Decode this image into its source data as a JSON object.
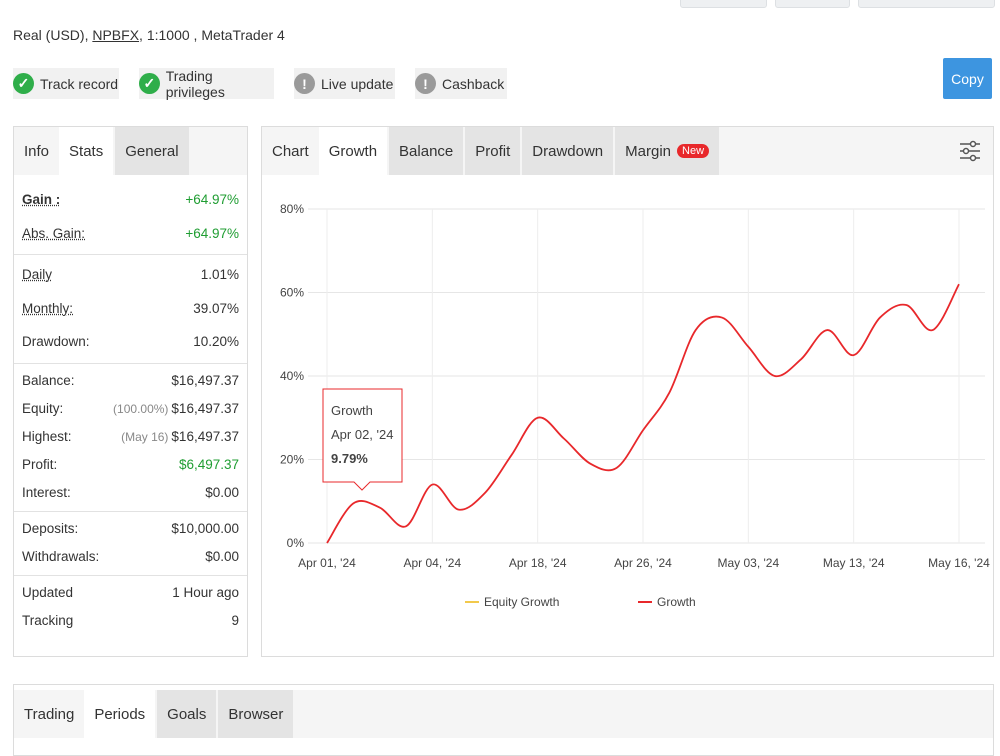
{
  "header": {
    "account": "Real (USD),",
    "broker": "NPBFX",
    "details": ", 1:1000 , MetaTrader 4",
    "badges": [
      {
        "label": "Track record",
        "status": "ok"
      },
      {
        "label": "Trading privileges",
        "status": "ok"
      },
      {
        "label": "Live update",
        "status": "warn"
      },
      {
        "label": "Cashback",
        "status": "warn"
      }
    ],
    "copy_button": "Copy"
  },
  "stats_panel": {
    "tabs": [
      "Info",
      "Stats",
      "General"
    ],
    "groups": [
      [
        {
          "label": "Gain :",
          "value": "+64.97%",
          "tone": "positive",
          "underline": true,
          "bold": true
        },
        {
          "label": "Abs. Gain:",
          "value": "+64.97%",
          "tone": "positive",
          "underline": true
        }
      ],
      [
        {
          "label": "Daily",
          "value": "1.01%",
          "underline": true
        },
        {
          "label": "Monthly:",
          "value": "39.07%",
          "underline": true
        },
        {
          "label": "Drawdown:",
          "value": "10.20%"
        }
      ],
      [
        {
          "label": "Balance:",
          "value": "$16,497.37"
        },
        {
          "label": "Equity:",
          "note": "(100.00%)",
          "value": "$16,497.37"
        },
        {
          "label": "Highest:",
          "note": "(May 16)",
          "value": "$16,497.37"
        },
        {
          "label": "Profit:",
          "value": "$6,497.37",
          "tone": "positive"
        },
        {
          "label": "Interest:",
          "value": "$0.00"
        }
      ],
      [
        {
          "label": "Deposits:",
          "value": "$10,000.00"
        },
        {
          "label": "Withdrawals:",
          "value": "$0.00"
        }
      ],
      [
        {
          "label": "Updated",
          "value": "1 Hour ago"
        },
        {
          "label": "Tracking",
          "value": "9"
        }
      ]
    ]
  },
  "chart_panel": {
    "tabs": [
      "Chart",
      "Growth",
      "Balance",
      "Profit",
      "Drawdown",
      "Margin"
    ],
    "new_badge": "New"
  },
  "chart_data": {
    "type": "line",
    "categories": [
      "Apr 01, '24",
      null,
      null,
      null,
      "Apr 04, '24",
      null,
      null,
      null,
      "Apr 18, '24",
      null,
      null,
      null,
      "Apr 26, '24",
      null,
      null,
      null,
      "May 03, '24",
      null,
      null,
      null,
      "May 13, '24",
      null,
      null,
      null,
      "May 16, '24"
    ],
    "series": [
      {
        "name": "Equity Growth",
        "color": "#f2c94c",
        "values": [
          null,
          null,
          null,
          null,
          null,
          null,
          null,
          null,
          null,
          null,
          null,
          null,
          null,
          null,
          null,
          null,
          null,
          null,
          null,
          null,
          null,
          null,
          null,
          null,
          null
        ]
      },
      {
        "name": "Growth",
        "color": "#e8282b",
        "values": [
          0,
          9.5,
          8.5,
          4,
          14,
          8,
          12,
          21,
          30,
          25,
          19,
          18,
          27,
          36,
          51,
          54,
          47,
          40,
          44,
          51,
          45,
          54,
          57,
          51,
          62
        ]
      }
    ],
    "ylim": [
      0,
      80
    ],
    "yticks": [
      {
        "value": 0,
        "label": "0%"
      },
      {
        "value": 20,
        "label": "20%"
      },
      {
        "value": 40,
        "label": "40%"
      },
      {
        "value": 60,
        "label": "60%"
      },
      {
        "value": 80,
        "label": "80%"
      }
    ],
    "grid": true,
    "legend": "bottom",
    "tooltip": {
      "title": "Growth",
      "date": "Apr 02, '24",
      "value": "9.79%"
    }
  },
  "bottom_panel": {
    "tabs": [
      "Trading",
      "Periods",
      "Goals",
      "Browser"
    ]
  }
}
